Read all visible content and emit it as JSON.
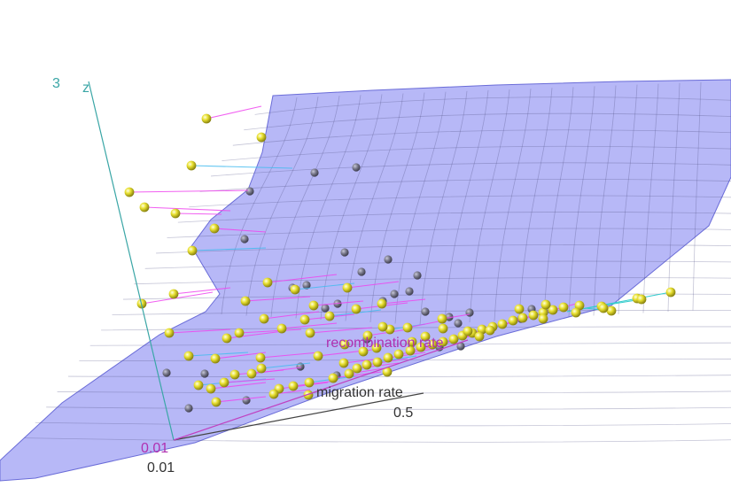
{
  "chart_data": {
    "type": "scatter",
    "subtype": "3d-surface-with-points",
    "axes": {
      "x": {
        "label": "migration rate",
        "min_tick": "0.01",
        "max_tick": "0.5",
        "color": "#333333"
      },
      "y": {
        "label": "recombination rate",
        "min_tick": "0.01",
        "color": "#b030b0"
      },
      "z": {
        "label": "z",
        "max_tick": "3",
        "color": "#3aa6a6"
      }
    },
    "surface": {
      "color": "#7c7ef0",
      "opacity": 0.55,
      "grid_color": "#55568a"
    },
    "points": {
      "above_color": "#e8e030",
      "below_color": "#777788",
      "residual_above_color": "#ee44ee",
      "residual_below_color": "#44bbee"
    }
  }
}
